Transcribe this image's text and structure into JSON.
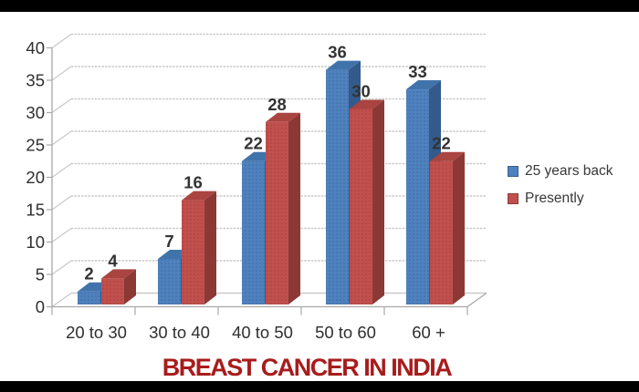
{
  "frame": {
    "background": "#ffffff",
    "letterbox_color": "#000000"
  },
  "title": {
    "text": "BREAST CANCER IN INDIA",
    "color": "#a81c1c"
  },
  "legend": {
    "position": "right",
    "items": [
      {
        "label": "25 years back",
        "color": "#4f81bd"
      },
      {
        "label": "Presently",
        "color": "#c0504d"
      }
    ]
  },
  "chart_data": {
    "type": "bar",
    "style": "3d-clustered-column",
    "title": "BREAST CANCER IN INDIA",
    "categories": [
      "20 to 30",
      "30 to 40",
      "40 to 50",
      "50 to 60",
      "60 +"
    ],
    "series": [
      {
        "name": "25 years back",
        "values": [
          2,
          7,
          22,
          36,
          33
        ],
        "color": "#4f81bd",
        "color_top": "#4173ab",
        "color_side": "#325b8c",
        "dot_color": "#3a6aa4"
      },
      {
        "name": "Presently",
        "values": [
          4,
          16,
          28,
          30,
          22
        ],
        "color": "#c0504d",
        "color_top": "#a94441",
        "color_side": "#8c3835",
        "dot_color": "#a83f3d"
      }
    ],
    "y_axis": {
      "min": 0,
      "max": 40,
      "step": 5,
      "tick_labels": [
        "0",
        "5",
        "10",
        "15",
        "20",
        "25",
        "30",
        "35",
        "40"
      ]
    },
    "value_labels": {
      "show": true,
      "series_0": [
        "2",
        "7",
        "22",
        "36",
        "33"
      ],
      "series_1": [
        "4",
        "16",
        "28",
        "30",
        "22"
      ],
      "color": "#333333"
    },
    "grid": true,
    "xlabel": "",
    "ylabel": "",
    "ylim": [
      0,
      40
    ],
    "grid_color": "#c9c9c9",
    "axis_color": "#a8a8a8",
    "label_color": "#2f2f2f"
  }
}
